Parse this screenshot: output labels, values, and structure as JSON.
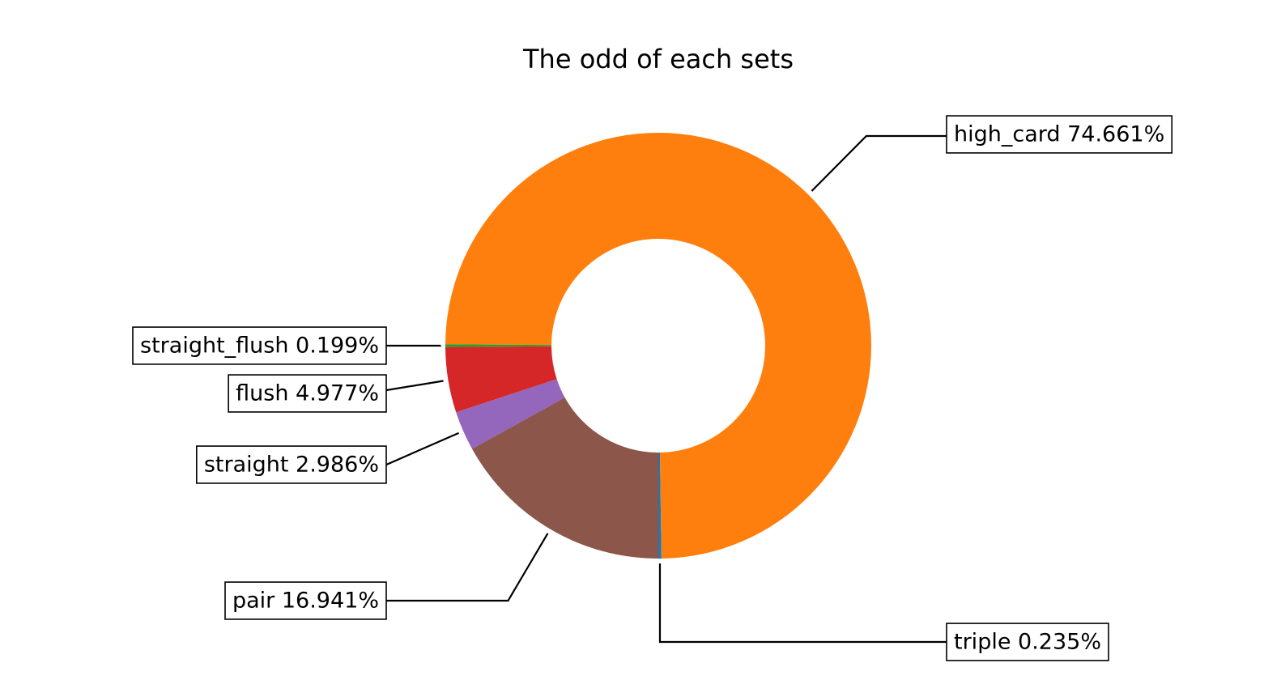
{
  "chart_data": {
    "type": "pie",
    "style": "donut",
    "title": "The odd of each sets",
    "start_angle_deg": -90,
    "direction": "counterclockwise",
    "slices": [
      {
        "label": "triple",
        "value": 0.235,
        "label_text": "triple 0.235%",
        "color": "#1f77b4"
      },
      {
        "label": "high_card",
        "value": 74.661,
        "label_text": "high_card 74.661%",
        "color": "#ff7f0e"
      },
      {
        "label": "straight_flush",
        "value": 0.199,
        "label_text": "straight_flush 0.199%",
        "color": "#2ca02c"
      },
      {
        "label": "flush",
        "value": 4.977,
        "label_text": "flush 4.977%",
        "color": "#d62728"
      },
      {
        "label": "straight",
        "value": 2.986,
        "label_text": "straight 2.986%",
        "color": "#9467bd"
      },
      {
        "label": "pair",
        "value": 16.941,
        "label_text": "pair 16.941%",
        "color": "#8c564b"
      }
    ]
  }
}
